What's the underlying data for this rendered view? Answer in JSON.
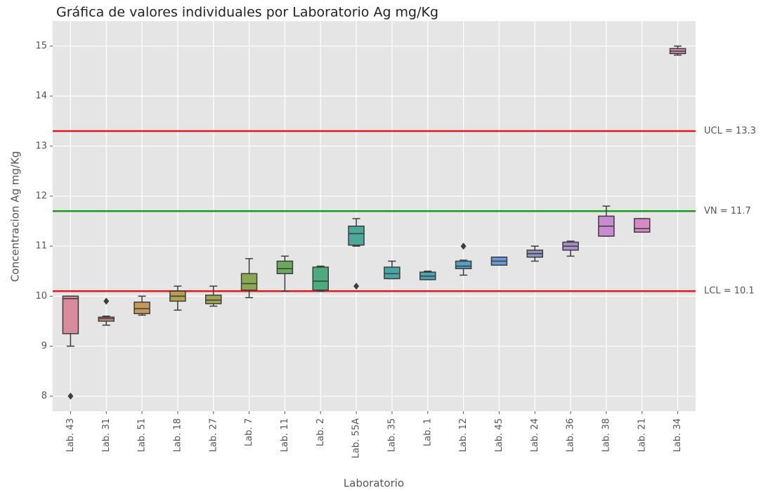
{
  "chart_data": {
    "type": "box",
    "title": "Gráfica de valores individuales por Laboratorio Ag mg/Kg",
    "xlabel": "Laboratorio",
    "ylabel": "Concentracion Ag mg/Kg",
    "categories": [
      "Lab. 43",
      "Lab. 31",
      "Lab. 51",
      "Lab. 18",
      "Lab. 27",
      "Lab. 7",
      "Lab. 11",
      "Lab. 2",
      "Lab. 55A",
      "Lab. 35",
      "Lab. 1",
      "Lab. 12",
      "Lab. 45",
      "Lab. 24",
      "Lab. 36",
      "Lab. 38",
      "Lab. 21",
      "Lab. 34"
    ],
    "boxes": [
      {
        "whislo": 9.0,
        "q1": 9.25,
        "med": 9.95,
        "q3": 10.0,
        "whishi": 10.0,
        "fliers": [
          8.0
        ]
      },
      {
        "whislo": 9.42,
        "q1": 9.5,
        "med": 9.55,
        "q3": 9.58,
        "whishi": 9.6,
        "fliers": [
          9.9
        ]
      },
      {
        "whislo": 9.62,
        "q1": 9.65,
        "med": 9.75,
        "q3": 9.88,
        "whishi": 10.0,
        "fliers": []
      },
      {
        "whislo": 9.72,
        "q1": 9.9,
        "med": 10.0,
        "q3": 10.1,
        "whishi": 10.2,
        "fliers": []
      },
      {
        "whislo": 9.8,
        "q1": 9.85,
        "med": 9.92,
        "q3": 10.02,
        "whishi": 10.2,
        "fliers": []
      },
      {
        "whislo": 9.97,
        "q1": 10.12,
        "med": 10.25,
        "q3": 10.45,
        "whishi": 10.75,
        "fliers": []
      },
      {
        "whislo": 10.1,
        "q1": 10.45,
        "med": 10.55,
        "q3": 10.7,
        "whishi": 10.8,
        "fliers": []
      },
      {
        "whislo": 10.1,
        "q1": 10.12,
        "med": 10.3,
        "q3": 10.58,
        "whishi": 10.6,
        "fliers": []
      },
      {
        "whislo": 11.0,
        "q1": 11.02,
        "med": 11.25,
        "q3": 11.4,
        "whishi": 11.55,
        "fliers": [
          10.2
        ]
      },
      {
        "whislo": 10.35,
        "q1": 10.35,
        "med": 10.45,
        "q3": 10.58,
        "whishi": 10.7,
        "fliers": []
      },
      {
        "whislo": 10.33,
        "q1": 10.33,
        "med": 10.4,
        "q3": 10.48,
        "whishi": 10.5,
        "fliers": []
      },
      {
        "whislo": 10.42,
        "q1": 10.55,
        "med": 10.6,
        "q3": 10.7,
        "whishi": 10.72,
        "fliers": [
          11.0
        ]
      },
      {
        "whislo": 10.62,
        "q1": 10.62,
        "med": 10.7,
        "q3": 10.78,
        "whishi": 10.78,
        "fliers": []
      },
      {
        "whislo": 10.7,
        "q1": 10.78,
        "med": 10.85,
        "q3": 10.92,
        "whishi": 11.0,
        "fliers": []
      },
      {
        "whislo": 10.8,
        "q1": 10.92,
        "med": 11.0,
        "q3": 11.08,
        "whishi": 11.1,
        "fliers": []
      },
      {
        "whislo": 11.2,
        "q1": 11.2,
        "med": 11.4,
        "q3": 11.6,
        "whishi": 11.8,
        "fliers": []
      },
      {
        "whislo": 11.28,
        "q1": 11.28,
        "med": 11.35,
        "q3": 11.55,
        "whishi": 11.55,
        "fliers": []
      },
      {
        "whislo": 14.82,
        "q1": 14.85,
        "med": 14.9,
        "q3": 14.95,
        "whishi": 15.0,
        "fliers": []
      }
    ],
    "colors": [
      "#d98b9c",
      "#cc8f78",
      "#c6985c",
      "#b4a04f",
      "#a0a64e",
      "#8aa852",
      "#6aaa5c",
      "#4cab7c",
      "#4aa99a",
      "#48a7a6",
      "#4aa5b2",
      "#52a1c4",
      "#6a9bd6",
      "#8d93bf",
      "#a98fc9",
      "#c98bd0",
      "#d68bc7",
      "#d88aae"
    ],
    "hlines": [
      {
        "value": 13.3,
        "label": "UCL = 13.3",
        "color": "#e8191c"
      },
      {
        "value": 11.7,
        "label": "VN = 11.7",
        "color": "#1a9a1a"
      },
      {
        "value": 10.1,
        "label": "LCL = 10.1",
        "color": "#e8191c"
      }
    ],
    "ylim": [
      7.7,
      15.5
    ],
    "yticks": [
      8,
      9,
      10,
      11,
      12,
      13,
      14,
      15
    ],
    "grid": true
  }
}
